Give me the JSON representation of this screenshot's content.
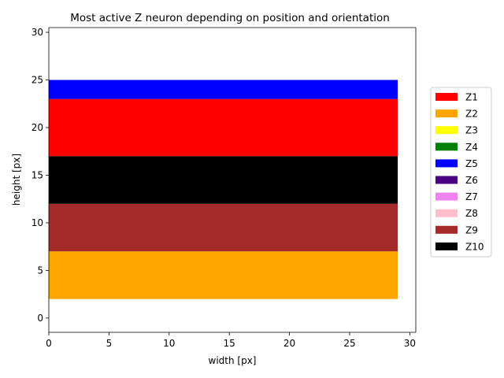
{
  "chart_data": {
    "type": "heatmap",
    "title": "Most active Z neuron depending on position and orientation",
    "xlabel": "width [px]",
    "ylabel": "height [px]",
    "xlim": [
      0,
      30.5
    ],
    "ylim": [
      -1.5,
      30.5
    ],
    "xticks": [
      0,
      5,
      10,
      15,
      20,
      25,
      30
    ],
    "yticks": [
      0,
      5,
      10,
      15,
      20,
      25,
      30
    ],
    "grid": false,
    "legend_position": "right",
    "legend": [
      {
        "label": "Z1",
        "color": "#ff0000"
      },
      {
        "label": "Z2",
        "color": "#ffa500"
      },
      {
        "label": "Z3",
        "color": "#ffff00"
      },
      {
        "label": "Z4",
        "color": "#008000"
      },
      {
        "label": "Z5",
        "color": "#0000ff"
      },
      {
        "label": "Z6",
        "color": "#4b0082"
      },
      {
        "label": "Z7",
        "color": "#ee82ee"
      },
      {
        "label": "Z8",
        "color": "#ffc0cb"
      },
      {
        "label": "Z9",
        "color": "#a52a2a"
      },
      {
        "label": "Z10",
        "color": "#000000"
      }
    ],
    "regions": [
      {
        "neuron": "Z2",
        "x": [
          0,
          29
        ],
        "y": [
          2,
          7
        ],
        "color": "#ffa500"
      },
      {
        "neuron": "Z9",
        "x": [
          0,
          29
        ],
        "y": [
          7,
          12
        ],
        "color": "#a52a2a"
      },
      {
        "neuron": "Z10",
        "x": [
          0,
          29
        ],
        "y": [
          12,
          17
        ],
        "color": "#000000"
      },
      {
        "neuron": "Z1",
        "x": [
          0,
          29
        ],
        "y": [
          17,
          23
        ],
        "color": "#ff0000"
      },
      {
        "neuron": "Z5",
        "x": [
          0,
          29
        ],
        "y": [
          23,
          25
        ],
        "color": "#0000ff"
      }
    ]
  }
}
